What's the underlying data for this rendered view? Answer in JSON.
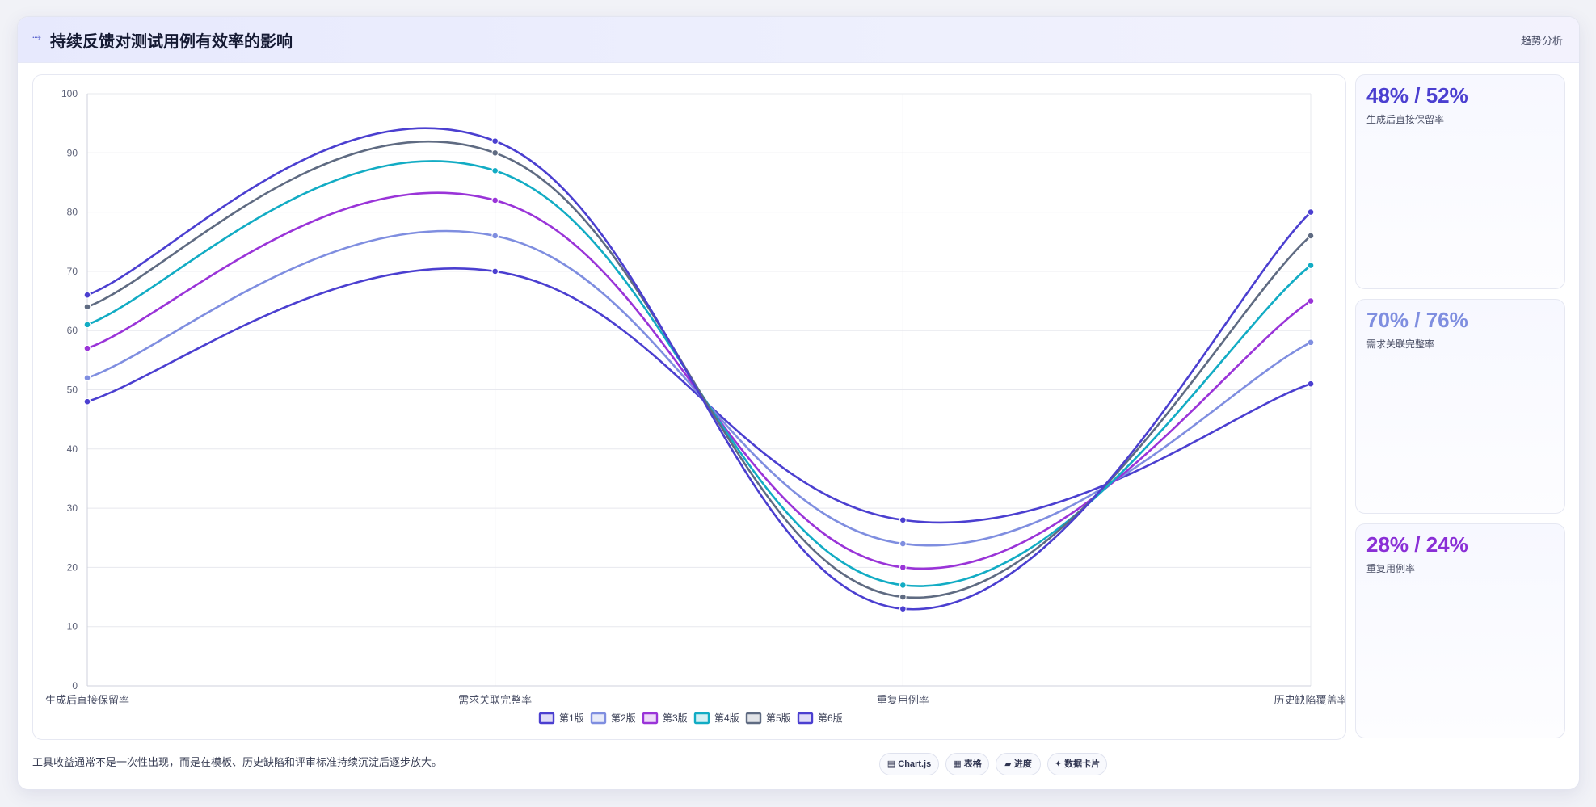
{
  "header": {
    "logo_glyph": "⤑",
    "title": "持续反馈对测试用例有效率的影响",
    "tag": "趋势分析"
  },
  "kpis": [
    {
      "value": "48% / 52%",
      "label": "生成后直接保留率",
      "color": "#4b3fd0"
    },
    {
      "value": "70% / 76%",
      "label": "需求关联完整率",
      "color": "#7f8ee0"
    },
    {
      "value": "28% / 24%",
      "label": "重复用例率",
      "color": "#8a2fd6"
    }
  ],
  "footer": {
    "note": "工具收益通常不是一次性出现，而是在模板、历史缺陷和评审标准持续沉淀后逐步放大。",
    "chips": [
      {
        "icon": "chart-icon",
        "label": "▤ Chart.js"
      },
      {
        "icon": "table-icon",
        "label": "▦ 表格"
      },
      {
        "icon": "progress-icon",
        "label": "▰ 进度"
      },
      {
        "icon": "card-icon",
        "label": "✦ 数据卡片"
      }
    ]
  },
  "chart_data": {
    "type": "line",
    "categories": [
      "生成后直接保留率",
      "需求关联完整率",
      "重复用例率",
      "历史缺陷覆盖率"
    ],
    "ylim": [
      0,
      100
    ],
    "yticks": [
      0,
      10,
      20,
      30,
      40,
      50,
      60,
      70,
      80,
      90,
      100
    ],
    "grid": true,
    "legend_position": "bottom",
    "series": [
      {
        "name": "第1版",
        "values": [
          48,
          70,
          28,
          51
        ],
        "color": "#4b3fd0"
      },
      {
        "name": "第2版",
        "values": [
          52,
          76,
          24,
          58
        ],
        "color": "#7f8ee0"
      },
      {
        "name": "第3版",
        "values": [
          57,
          82,
          20,
          65
        ],
        "color": "#9a34d8"
      },
      {
        "name": "第4版",
        "values": [
          61,
          87,
          17,
          71
        ],
        "color": "#12acc4"
      },
      {
        "name": "第5版",
        "values": [
          64,
          90,
          15,
          76
        ],
        "color": "#5f6b82"
      },
      {
        "name": "第6版",
        "values": [
          66,
          92,
          13,
          80
        ],
        "color": "#4b3fd0"
      }
    ]
  }
}
